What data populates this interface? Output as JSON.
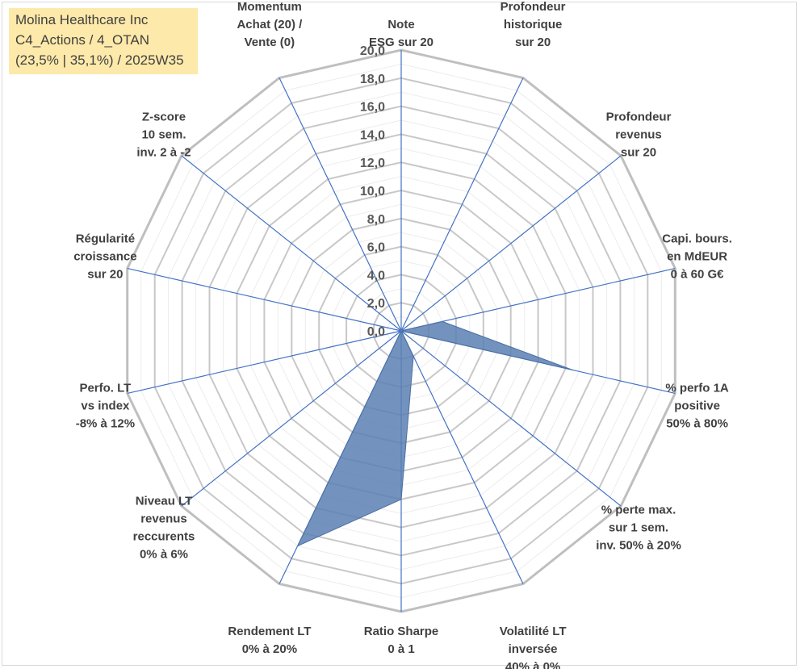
{
  "title_box": {
    "line1": "Molina Healthcare Inc",
    "line2": "C4_Actions / 4_OTAN",
    "line3": "(23,5% | 35,1%) / 2025W35"
  },
  "chart_data": {
    "type": "radar",
    "rmin": 0,
    "rmax": 20,
    "tick_step": 2,
    "tick_labels": [
      "0,0",
      "2,0",
      "4,0",
      "6,0",
      "8,0",
      "10,0",
      "12,0",
      "14,0",
      "16,0",
      "18,0",
      "20,0"
    ],
    "grid": true,
    "categories": [
      "Note ESG sur 20",
      "Profondeur historique sur 20",
      "Profondeur revenus sur 20",
      "Capi. bours. en MdEUR 0 à 60 G€",
      "% perfo 1A positive 50% à 80%",
      "% perte max. sur 1 sem. inv. 50% à 20%",
      "Volatilité LT inversée 40% à 0%",
      "Ratio Sharpe 0 à 1",
      "Rendement LT 0% à 20%",
      "Niveau LT revenus reccurents 0% à 6%",
      "Perfo. LT vs index -8% à 12%",
      "Régularité croissance sur 20",
      "Z-score 10 sem. inv. 2 à -2",
      "Momentum Achat (20) / Vente (0)"
    ],
    "axis_label_lines": [
      [
        "Note",
        "ESG sur 20"
      ],
      [
        "Profondeur",
        "historique",
        "sur 20"
      ],
      [
        "Profondeur",
        "revenus",
        "sur 20"
      ],
      [
        "Capi. bours.",
        "en MdEUR",
        "0 à 60 G€"
      ],
      [
        "% perfo 1A",
        "positive",
        "50% à 80%"
      ],
      [
        "% perte max.",
        "sur 1 sem.",
        "inv. 50% à 20%"
      ],
      [
        "Volatilité LT",
        "inversée",
        "40% à 0%"
      ],
      [
        "Ratio Sharpe",
        "0 à 1"
      ],
      [
        "Rendement LT",
        "0% à 20%"
      ],
      [
        "Niveau LT",
        "revenus",
        "reccurents",
        "0% à 6%"
      ],
      [
        "Perfo. LT",
        "vs index",
        "-8% à 12%"
      ],
      [
        "Régularité",
        "croissance",
        "sur 20"
      ],
      [
        "Z-score",
        "10 sem.",
        "inv. 2 à -2"
      ],
      [
        "Momentum",
        "Achat (20) /",
        "Vente (0)"
      ]
    ],
    "series": [
      {
        "values": [
          0,
          0,
          0,
          3.0,
          12.5,
          0,
          2.0,
          12.0,
          17.0,
          0,
          0,
          0,
          0,
          0
        ],
        "color": "#5b80b3"
      }
    ],
    "axis_color": "#4472c4",
    "grid_color": "#d9d9d9",
    "outer_ring_color": "#bfbfbf"
  }
}
